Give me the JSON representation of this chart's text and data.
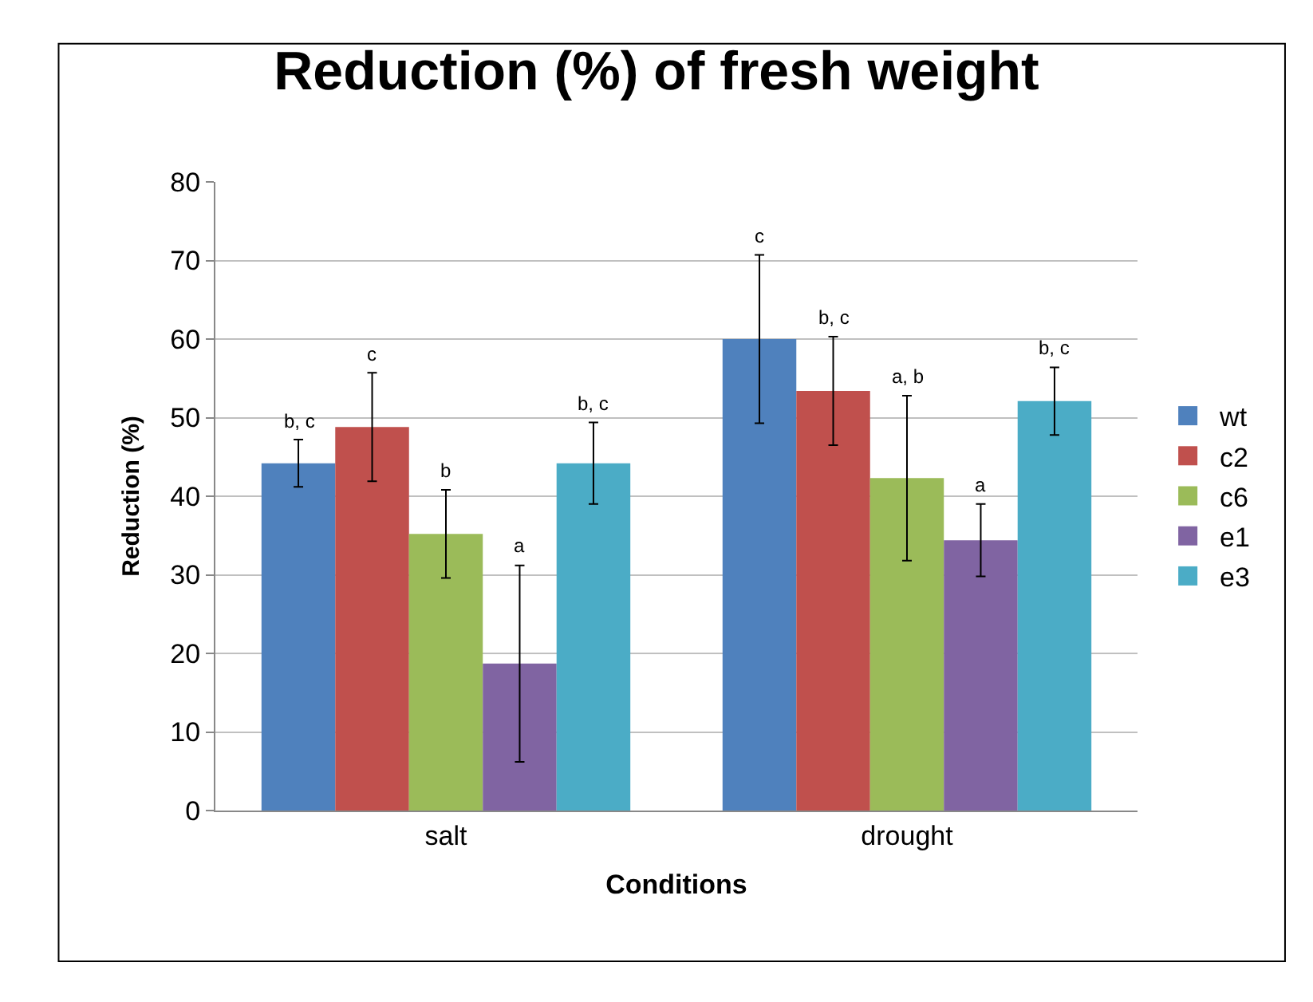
{
  "chart_data": {
    "type": "bar",
    "title": "Reduction (%) of fresh weight",
    "xlabel": "Conditions",
    "ylabel": "Reduction (%)",
    "categories": [
      "salt",
      "drought"
    ],
    "series": [
      {
        "name": "wt",
        "color": "#4f81bd",
        "values": [
          44.2,
          60.0
        ],
        "errors": [
          3.0,
          10.7
        ]
      },
      {
        "name": "c2",
        "color": "#c0504d",
        "values": [
          48.8,
          53.4
        ],
        "errors": [
          6.9,
          6.9
        ]
      },
      {
        "name": "c6",
        "color": "#9bbb59",
        "values": [
          35.2,
          42.3
        ],
        "errors": [
          5.6,
          10.5
        ]
      },
      {
        "name": "e1",
        "color": "#8064a2",
        "values": [
          18.7,
          34.4
        ],
        "errors": [
          12.5,
          4.6
        ]
      },
      {
        "name": "e3",
        "color": "#4bacc6",
        "values": [
          44.2,
          52.1
        ],
        "errors": [
          5.2,
          4.3
        ]
      }
    ],
    "annotations": [
      "b, c",
      "c",
      "c",
      "b, c",
      "b",
      "a, b",
      "a",
      "a",
      "b, c",
      "b, c"
    ],
    "ylim": [
      0,
      80
    ],
    "yticks": [
      0,
      10,
      20,
      30,
      40,
      50,
      60,
      70,
      80
    ],
    "grid": "y",
    "legend": "right"
  }
}
